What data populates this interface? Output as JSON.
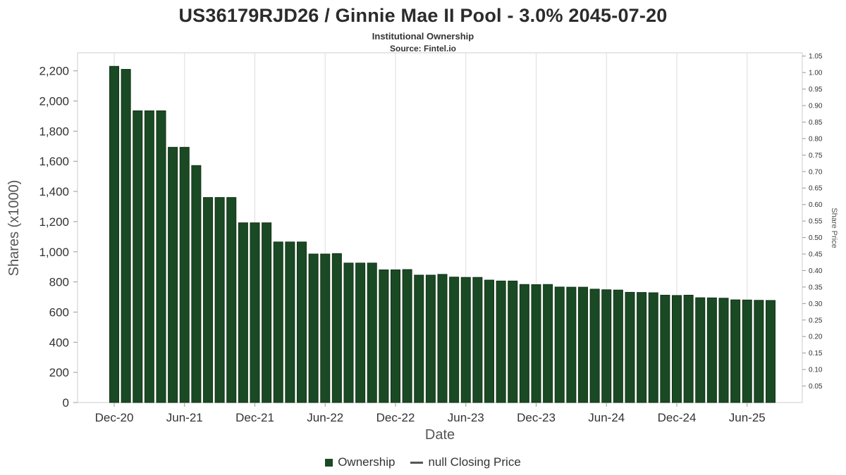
{
  "chart_data": {
    "type": "bar",
    "title": "US36179RJD26 / Ginnie Mae II Pool - 3.0% 2045-07-20",
    "subtitle": "Institutional Ownership",
    "source": "Source: Fintel.io",
    "xlabel": "Date",
    "ylabel": "Shares (x1000)",
    "ylabel_right": "Share Price",
    "ylim": [
      0,
      2320
    ],
    "ylim_right": [
      0,
      1.06
    ],
    "grid": "vertical-only",
    "legend_position": "bottom-center",
    "y_ticks_left": [
      0,
      200,
      400,
      600,
      800,
      1000,
      1200,
      1400,
      1600,
      1800,
      2000,
      2200
    ],
    "y_ticks_right": [
      0.05,
      0.1,
      0.15,
      0.2,
      0.25,
      0.3,
      0.35,
      0.4,
      0.45,
      0.5,
      0.55,
      0.6,
      0.65,
      0.7,
      0.75,
      0.8,
      0.85,
      0.9,
      0.95,
      1.0,
      1.05
    ],
    "x_tick_labels": [
      "Dec-20",
      "Jun-21",
      "Dec-21",
      "Jun-22",
      "Dec-22",
      "Jun-23",
      "Dec-23",
      "Jun-24",
      "Dec-24",
      "Jun-25"
    ],
    "categories": [
      "Dec-20",
      "Jan-21",
      "Feb-21",
      "Mar-21",
      "Apr-21",
      "May-21",
      "Jun-21",
      "Jul-21",
      "Aug-21",
      "Sep-21",
      "Oct-21",
      "Nov-21",
      "Dec-21",
      "Jan-22",
      "Feb-22",
      "Mar-22",
      "Apr-22",
      "May-22",
      "Jun-22",
      "Jul-22",
      "Aug-22",
      "Sep-22",
      "Oct-22",
      "Nov-22",
      "Dec-22",
      "Jan-23",
      "Feb-23",
      "Mar-23",
      "Apr-23",
      "May-23",
      "Jun-23",
      "Jul-23",
      "Aug-23",
      "Sep-23",
      "Oct-23",
      "Nov-23",
      "Dec-23",
      "Jan-24",
      "Feb-24",
      "Mar-24",
      "Apr-24",
      "May-24",
      "Jun-24",
      "Jul-24",
      "Aug-24",
      "Sep-24",
      "Oct-24",
      "Nov-24",
      "Dec-24",
      "Jan-25",
      "Feb-25",
      "Mar-25",
      "Apr-25",
      "May-25",
      "Jun-25",
      "Jul-25",
      "Aug-25"
    ],
    "series": [
      {
        "name": "Ownership",
        "values": [
          2230,
          2210,
          1935,
          1935,
          1935,
          1693,
          1693,
          1572,
          1360,
          1360,
          1360,
          1192,
          1192,
          1192,
          1065,
          1065,
          1065,
          985,
          985,
          988,
          925,
          925,
          925,
          880,
          880,
          882,
          845,
          845,
          850,
          832,
          830,
          830,
          812,
          806,
          806,
          783,
          782,
          783,
          766,
          765,
          765,
          752,
          748,
          746,
          731,
          730,
          728,
          712,
          710,
          712,
          695,
          694,
          692,
          681,
          680,
          678,
          677
        ]
      }
    ],
    "legend": [
      {
        "label": "Ownership",
        "marker": "square",
        "color": "#1a4a24"
      },
      {
        "label": "null Closing Price",
        "marker": "line",
        "color": "#555555"
      }
    ],
    "bar_color": "#1a4a24",
    "bar_border_color": "#123317",
    "grid_color": "#dddddd",
    "axis_line_color": "#cccccc",
    "tick_color": "#999999"
  }
}
